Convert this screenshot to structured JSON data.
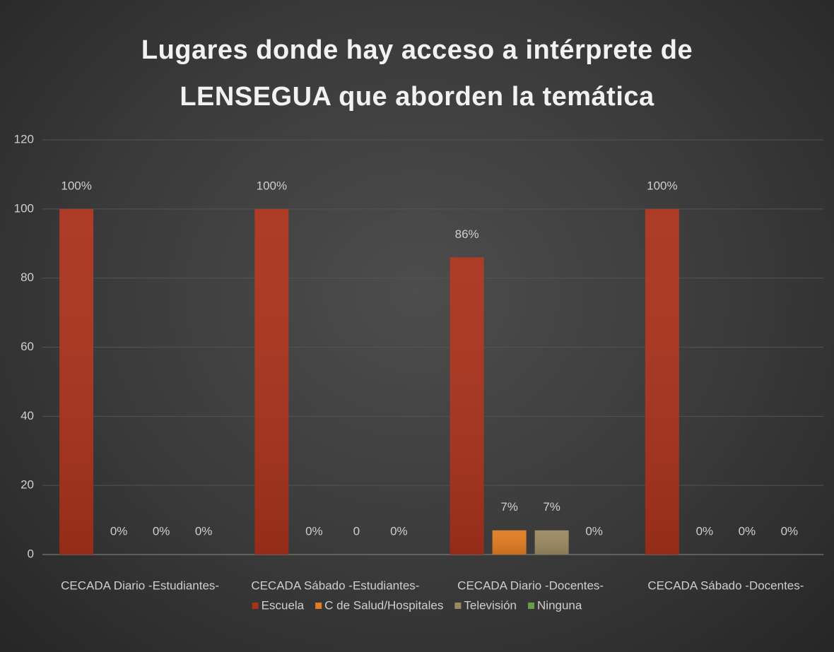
{
  "chart_data": {
    "type": "bar",
    "title": "Lugares donde hay acceso a intérprete de LENSEGUA que aborden la temática",
    "categories": [
      "CECADA Diario -Estudiantes-",
      "CECADA Sábado -Estudiantes-",
      "CECADA Diario -Docentes-",
      "CECADA Sábado -Docentes-"
    ],
    "series": [
      {
        "name": "Escuela",
        "color": "#a9321c",
        "values": [
          100,
          100,
          86,
          100
        ],
        "value_labels": [
          "100%",
          "100%",
          "86%",
          "100%"
        ]
      },
      {
        "name": "C de Salud/Hospitales",
        "color": "#e27b22",
        "values": [
          0,
          0,
          7,
          0
        ],
        "value_labels": [
          "0%",
          "0%",
          "7%",
          "0%"
        ]
      },
      {
        "name": "Televisión",
        "color": "#9c8962",
        "values": [
          0,
          0,
          7,
          0
        ],
        "value_labels": [
          "0%",
          "0",
          "7%",
          "0%"
        ]
      },
      {
        "name": "Ninguna",
        "color": "#6b9c47",
        "values": [
          0,
          0,
          0,
          0
        ],
        "value_labels": [
          "0%",
          "0%",
          "0%",
          "0%"
        ]
      }
    ],
    "ylim": [
      0,
      120
    ],
    "yticks": [
      0,
      20,
      40,
      60,
      80,
      100,
      120
    ],
    "grid": true,
    "legend": "bottom"
  }
}
